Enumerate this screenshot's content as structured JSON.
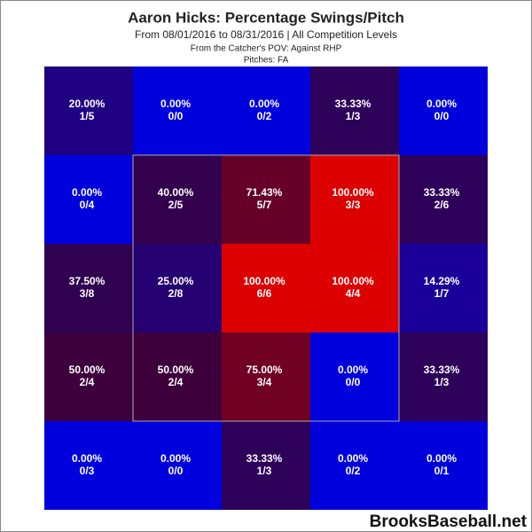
{
  "chart_data": {
    "type": "heatmap",
    "title": "Aaron Hicks: Percentage Swings/Pitch",
    "subtitle": "From 08/01/2016 to 08/31/2016 | All Competition Levels",
    "subtitle2": "From the Catcher's POV:  Against RHP",
    "subtitle3": "Pitches:  FA",
    "watermark": "BrooksBaseball.net",
    "color_low": "#0000dd",
    "color_high": "#dd0000",
    "scale_range": [
      0,
      100
    ],
    "values": [
      [
        20,
        0,
        0,
        33.33,
        0
      ],
      [
        0,
        40,
        71.43,
        100,
        33.33
      ],
      [
        37.5,
        25,
        100,
        100,
        14.29
      ],
      [
        50,
        50,
        75,
        0,
        33.33
      ],
      [
        0,
        0,
        33.33,
        0,
        0
      ]
    ],
    "value_labels": [
      [
        "20.00%",
        "0.00%",
        "0.00%",
        "33.33%",
        "0.00%"
      ],
      [
        "0.00%",
        "40.00%",
        "71.43%",
        "100.00%",
        "33.33%"
      ],
      [
        "37.50%",
        "25.00%",
        "100.00%",
        "100.00%",
        "14.29%"
      ],
      [
        "50.00%",
        "50.00%",
        "75.00%",
        "0.00%",
        "33.33%"
      ],
      [
        "0.00%",
        "0.00%",
        "33.33%",
        "0.00%",
        "0.00%"
      ]
    ],
    "counts": [
      [
        "1/5",
        "0/0",
        "0/2",
        "1/3",
        "0/0"
      ],
      [
        "0/4",
        "2/5",
        "5/7",
        "3/3",
        "2/6"
      ],
      [
        "3/8",
        "2/8",
        "6/6",
        "4/4",
        "1/7"
      ],
      [
        "2/4",
        "2/4",
        "3/4",
        "0/0",
        "1/3"
      ],
      [
        "0/3",
        "0/0",
        "1/3",
        "0/2",
        "0/1"
      ]
    ]
  }
}
